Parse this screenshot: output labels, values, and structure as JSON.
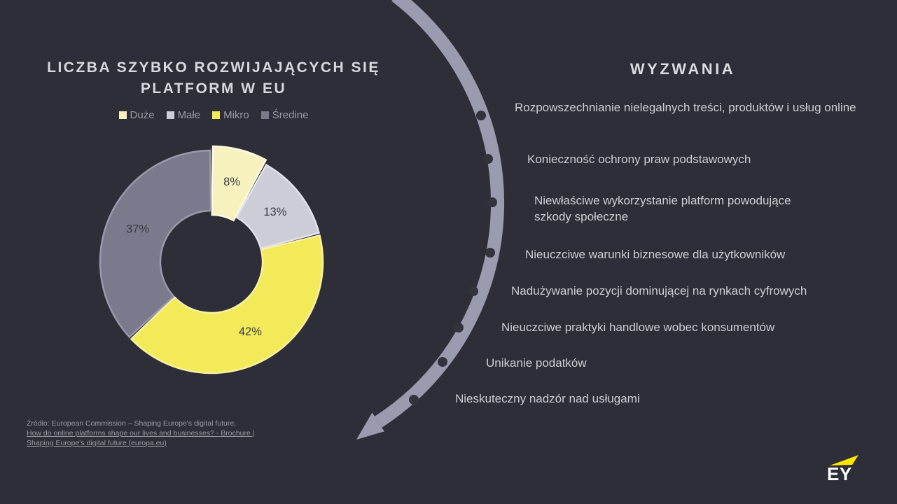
{
  "slide": {
    "background": "#2E2E38"
  },
  "chart_data": {
    "type": "pie",
    "variant": "donut",
    "title": "LICZBA SZYBKO ROZWIJAJĄCYCH SIĘ PLATFORM W EU",
    "categories": [
      "Duże",
      "Małe",
      "Mikro",
      "Średine"
    ],
    "values": [
      8,
      13,
      42,
      37
    ],
    "unit": "%",
    "slice_labels": [
      "8%",
      "13%",
      "42%",
      "37%"
    ],
    "colors": [
      "#F7F2BD",
      "#CDCDD8",
      "#F3EA59",
      "#7A7A8C"
    ],
    "rim_colors": [
      "#FDFAE0",
      "#E2E2EA",
      "#F8F1A1",
      "#9A9AAC"
    ],
    "label_color": "#3B3B45",
    "legend_position": "top",
    "start_angle_deg": 0,
    "direction": "clockwise"
  },
  "challenges": {
    "heading": "WYZWANIA",
    "items": [
      "Rozpowszechnianie nielegalnych treści, produktów i usług online",
      "Konieczność ochrony praw podstawowych",
      "Niewłaściwe wykorzystanie platform powodujące szkody społeczne",
      "Nieuczciwe warunki biznesowe dla użytkowników",
      "Nadużywanie pozycji dominującej na rynkach cyfrowych",
      "Nieuczciwe praktyki handlowe wobec konsumentów",
      "Unikanie podatków",
      "Nieskuteczny nadzór nad usługami"
    ]
  },
  "decor": {
    "arrow_color": "#9B9BAF",
    "dot_color": "#33333D"
  },
  "source": {
    "prefix": "Źródło: European Commission – Shaping Europe's digital future,",
    "link_line1": "How do online platforms shape our lives and businesses? -",
    "link_line2": "Brochure | Shaping Europe's digital future (europa.eu)"
  },
  "logo": {
    "text": "EY",
    "beam_color": "#FFE600"
  }
}
